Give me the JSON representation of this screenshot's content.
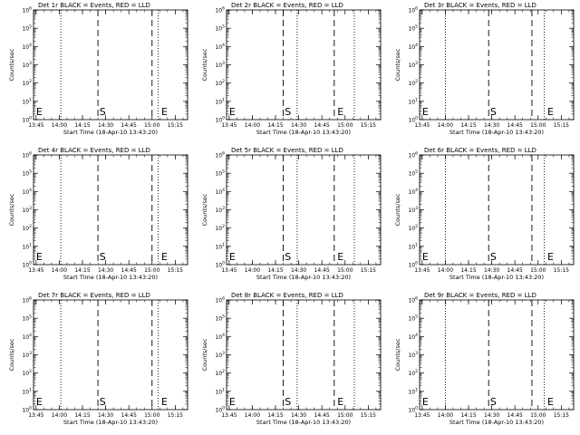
{
  "chart_data": [
    {
      "type": "line",
      "title": "Det 1r BLACK = Events, RED = LLD",
      "xlabel": "Start Time (18-Apr-10 13:43:20)",
      "ylabel": "Counts/sec",
      "y_scale": "log",
      "x_ticks": [
        "13:45",
        "14:00",
        "14:15",
        "14:30",
        "14:45",
        "15:00",
        "15:15"
      ],
      "y_ticks": [
        "10^0",
        "10^1",
        "10^2",
        "10^3",
        "10^4",
        "10^5",
        "10^6"
      ],
      "x_range": [
        "13:43:20",
        "15:23"
      ],
      "y_range": [
        1,
        1000000
      ],
      "dotted_lines": [
        "13:43:20",
        "14:01",
        "15:04",
        "15:23"
      ],
      "dashed_lines": [
        "14:25",
        "15:00"
      ],
      "markers": [
        {
          "label": "E",
          "x": "13:45"
        },
        {
          "label": "S",
          "x": "14:26"
        },
        {
          "label": "E",
          "x": "15:06"
        }
      ],
      "grid": false,
      "series": []
    },
    {
      "type": "line",
      "title": "Det 2r BLACK = Events, RED = LLD",
      "xlabel": "Start Time (18-Apr-10 13:43:20)",
      "ylabel": "Counts/sec",
      "y_scale": "log",
      "x_ticks": [
        "13:45",
        "14:00",
        "14:15",
        "14:30",
        "14:45",
        "15:00",
        "15:15"
      ],
      "y_ticks": [
        "10^0",
        "10^1",
        "10^2",
        "10^3",
        "10^4",
        "10^5",
        "10^6"
      ],
      "x_range": [
        "13:43:20",
        "15:23"
      ],
      "y_range": [
        1,
        1000000
      ],
      "dotted_lines": [
        "13:43:20",
        "14:29",
        "15:06",
        "15:23"
      ],
      "dashed_lines": [
        "14:20",
        "14:53"
      ],
      "markers": [
        {
          "label": "E",
          "x": "13:45"
        },
        {
          "label": "S",
          "x": "14:21"
        },
        {
          "label": "E",
          "x": "14:55"
        }
      ],
      "grid": false,
      "series": []
    },
    {
      "type": "line",
      "title": "Det 3r BLACK = Events, RED = LLD",
      "xlabel": "Start Time (18-Apr-10 13:43:20)",
      "ylabel": "Counts/sec",
      "y_scale": "log",
      "x_ticks": [
        "13:45",
        "14:00",
        "14:15",
        "14:30",
        "14:45",
        "15:00",
        "15:15"
      ],
      "y_ticks": [
        "10^0",
        "10^1",
        "10^2",
        "10^3",
        "10^4",
        "10^5",
        "10^6"
      ],
      "x_range": [
        "13:43:20",
        "15:23"
      ],
      "y_range": [
        1,
        1000000
      ],
      "dotted_lines": [
        "13:43:20",
        "14:00",
        "15:04",
        "15:23"
      ],
      "dashed_lines": [
        "14:28",
        "14:56"
      ],
      "markers": [
        {
          "label": "E",
          "x": "13:45"
        },
        {
          "label": "S",
          "x": "14:29"
        },
        {
          "label": "E",
          "x": "15:06"
        }
      ],
      "grid": false,
      "series": []
    },
    {
      "type": "line",
      "title": "Det 4r BLACK = Events, RED = LLD",
      "xlabel": "Start Time (18-Apr-10 13:43:20)",
      "ylabel": "Counts/sec",
      "y_scale": "log",
      "x_ticks": [
        "13:45",
        "14:00",
        "14:15",
        "14:30",
        "14:45",
        "15:00",
        "15:15"
      ],
      "y_ticks": [
        "10^0",
        "10^1",
        "10^2",
        "10^3",
        "10^4",
        "10^5",
        "10^6"
      ],
      "x_range": [
        "13:43:20",
        "15:23"
      ],
      "y_range": [
        1,
        1000000
      ],
      "dotted_lines": [
        "13:43:20",
        "14:01",
        "15:04",
        "15:23"
      ],
      "dashed_lines": [
        "14:25",
        "15:00"
      ],
      "markers": [
        {
          "label": "E",
          "x": "13:45"
        },
        {
          "label": "S",
          "x": "14:26"
        },
        {
          "label": "E",
          "x": "15:06"
        }
      ],
      "grid": false,
      "series": []
    },
    {
      "type": "line",
      "title": "Det 5r BLACK = Events, RED = LLD",
      "xlabel": "Start Time (18-Apr-10 13:43:20)",
      "ylabel": "Counts/sec",
      "y_scale": "log",
      "x_ticks": [
        "13:45",
        "14:00",
        "14:15",
        "14:30",
        "14:45",
        "15:00",
        "15:15"
      ],
      "y_ticks": [
        "10^0",
        "10^1",
        "10^2",
        "10^3",
        "10^4",
        "10^5",
        "10^6"
      ],
      "x_range": [
        "13:43:20",
        "15:23"
      ],
      "y_range": [
        1,
        1000000
      ],
      "dotted_lines": [
        "13:43:20",
        "14:29",
        "15:06",
        "15:23"
      ],
      "dashed_lines": [
        "14:20",
        "14:53"
      ],
      "markers": [
        {
          "label": "E",
          "x": "13:45"
        },
        {
          "label": "S",
          "x": "14:21"
        },
        {
          "label": "E",
          "x": "14:55"
        }
      ],
      "grid": false,
      "series": []
    },
    {
      "type": "line",
      "title": "Det 6r BLACK = Events, RED = LLD",
      "xlabel": "Start Time (18-Apr-10 13:43:20)",
      "ylabel": "Counts/sec",
      "y_scale": "log",
      "x_ticks": [
        "13:45",
        "14:00",
        "14:15",
        "14:30",
        "14:45",
        "15:00",
        "15:15"
      ],
      "y_ticks": [
        "10^0",
        "10^1",
        "10^2",
        "10^3",
        "10^4",
        "10^5",
        "10^6"
      ],
      "x_range": [
        "13:43:20",
        "15:23"
      ],
      "y_range": [
        1,
        1000000
      ],
      "dotted_lines": [
        "13:43:20",
        "14:00",
        "15:04",
        "15:23"
      ],
      "dashed_lines": [
        "14:28",
        "14:56"
      ],
      "markers": [
        {
          "label": "E",
          "x": "13:45"
        },
        {
          "label": "S",
          "x": "14:29"
        },
        {
          "label": "E",
          "x": "15:06"
        }
      ],
      "grid": false,
      "series": []
    },
    {
      "type": "line",
      "title": "Det 7r BLACK = Events, RED = LLD",
      "xlabel": "Start Time (18-Apr-10 13:43:20)",
      "ylabel": "Counts/sec",
      "y_scale": "log",
      "x_ticks": [
        "13:45",
        "14:00",
        "14:15",
        "14:30",
        "14:45",
        "15:00",
        "15:15"
      ],
      "y_ticks": [
        "10^0",
        "10^1",
        "10^2",
        "10^3",
        "10^4",
        "10^5",
        "10^6"
      ],
      "x_range": [
        "13:43:20",
        "15:23"
      ],
      "y_range": [
        1,
        1000000
      ],
      "dotted_lines": [
        "13:43:20",
        "14:01",
        "15:04",
        "15:23"
      ],
      "dashed_lines": [
        "14:25",
        "15:00"
      ],
      "markers": [
        {
          "label": "E",
          "x": "13:45"
        },
        {
          "label": "S",
          "x": "14:26"
        },
        {
          "label": "E",
          "x": "15:06"
        }
      ],
      "grid": false,
      "series": []
    },
    {
      "type": "line",
      "title": "Det 8r BLACK = Events, RED = LLD",
      "xlabel": "Start Time (18-Apr-10 13:43:20)",
      "ylabel": "Counts/sec",
      "y_scale": "log",
      "x_ticks": [
        "13:45",
        "14:00",
        "14:15",
        "14:30",
        "14:45",
        "15:00",
        "15:15"
      ],
      "y_ticks": [
        "10^0",
        "10^1",
        "10^2",
        "10^3",
        "10^4",
        "10^5",
        "10^6"
      ],
      "x_range": [
        "13:43:20",
        "15:23"
      ],
      "y_range": [
        1,
        1000000
      ],
      "dotted_lines": [
        "13:43:20",
        "14:29",
        "15:06",
        "15:23"
      ],
      "dashed_lines": [
        "14:20",
        "14:53"
      ],
      "markers": [
        {
          "label": "E",
          "x": "13:45"
        },
        {
          "label": "S",
          "x": "14:21"
        },
        {
          "label": "E",
          "x": "14:55"
        }
      ],
      "grid": false,
      "series": []
    },
    {
      "type": "line",
      "title": "Det 9r BLACK = Events, RED = LLD",
      "xlabel": "Start Time (18-Apr-10 13:43:20)",
      "ylabel": "Counts/sec",
      "y_scale": "log",
      "x_ticks": [
        "13:45",
        "14:00",
        "14:15",
        "14:30",
        "14:45",
        "15:00",
        "15:15"
      ],
      "y_ticks": [
        "10^0",
        "10^1",
        "10^2",
        "10^3",
        "10^4",
        "10^5",
        "10^6"
      ],
      "x_range": [
        "13:43:20",
        "15:23"
      ],
      "y_range": [
        1,
        1000000
      ],
      "dotted_lines": [
        "13:43:20",
        "14:00",
        "15:04",
        "15:23"
      ],
      "dashed_lines": [
        "14:28",
        "14:56"
      ],
      "markers": [
        {
          "label": "E",
          "x": "13:45"
        },
        {
          "label": "S",
          "x": "14:29"
        },
        {
          "label": "E",
          "x": "15:06"
        }
      ],
      "grid": false,
      "series": []
    }
  ]
}
